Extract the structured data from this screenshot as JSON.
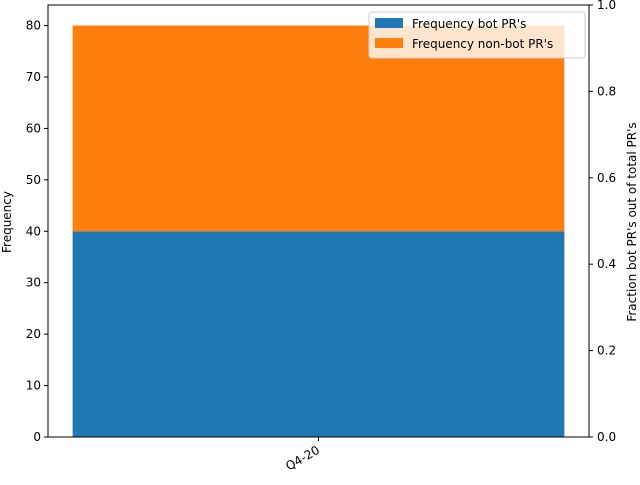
{
  "chart_data": {
    "type": "bar",
    "stacked": true,
    "categories": [
      "Q4-20"
    ],
    "series": [
      {
        "name": "Frequency bot PR's",
        "values": [
          40
        ],
        "color": "#1f77b4"
      },
      {
        "name": "Frequency non-bot PR's",
        "values": [
          40
        ],
        "color": "#ff7f0e"
      }
    ],
    "title": "",
    "xlabel": "",
    "ylabel": "Frequency",
    "ylim": [
      0,
      84
    ],
    "yticks": [
      0,
      10,
      20,
      30,
      40,
      50,
      60,
      70,
      80
    ],
    "secondary_axis": {
      "ylabel": "Fraction bot PR's out of total PR's",
      "ylim": [
        0,
        1
      ],
      "yticks": [
        "0.0",
        "0.2",
        "0.4",
        "0.6",
        "0.8",
        "1.0"
      ]
    },
    "legend_position": "top-right",
    "grid": false
  }
}
